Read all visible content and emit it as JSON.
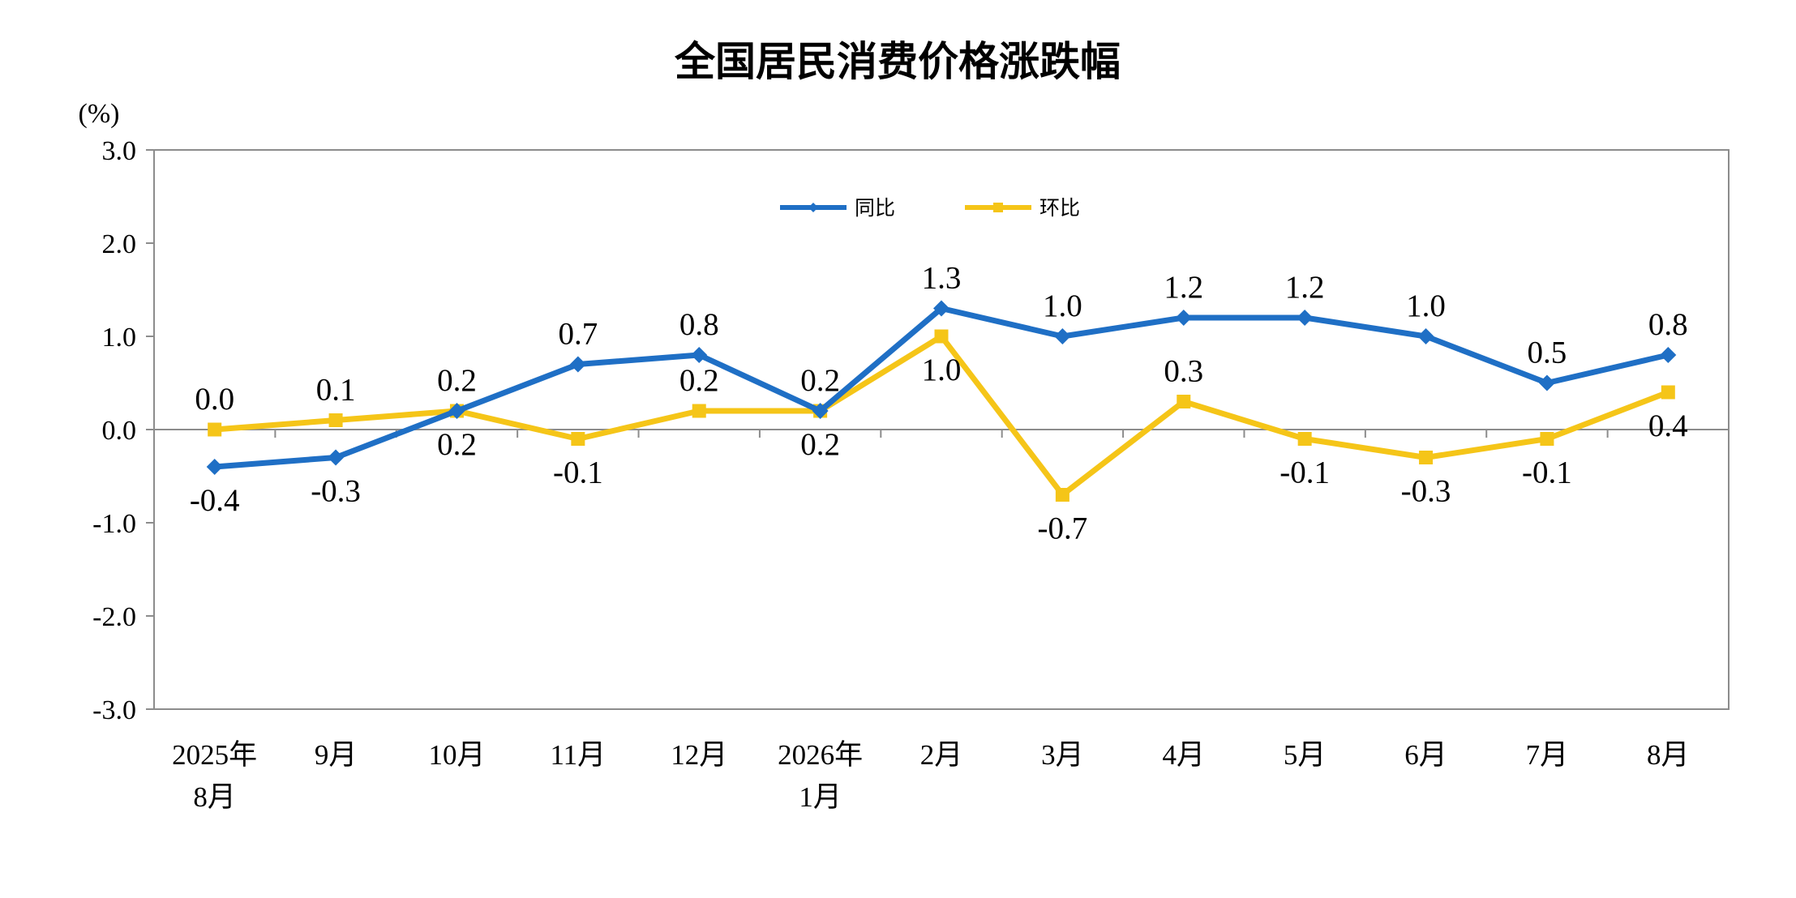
{
  "chart_data": {
    "type": "line",
    "title": "全国居民消费价格涨跌幅",
    "ylabel": "(%)",
    "xlabel": "",
    "categories": [
      [
        "2025年",
        "8月"
      ],
      [
        "9月"
      ],
      [
        "10月"
      ],
      [
        "11月"
      ],
      [
        "12月"
      ],
      [
        "2026年",
        "1月"
      ],
      [
        "2月"
      ],
      [
        "3月"
      ],
      [
        "4月"
      ],
      [
        "5月"
      ],
      [
        "6月"
      ],
      [
        "7月"
      ],
      [
        "8月"
      ]
    ],
    "ylim": [
      -3.0,
      3.0
    ],
    "yticks": [
      "3.0",
      "2.0",
      "1.0",
      "0.0",
      "-1.0",
      "-2.0",
      "-3.0"
    ],
    "yticks_values": [
      3,
      2,
      1,
      0,
      -1,
      -2,
      -3
    ],
    "legend_position": "top-center",
    "grid": false,
    "series": [
      {
        "name": "同比",
        "color": "#1F6FC5",
        "marker": "diamond",
        "values": [
          -0.4,
          -0.3,
          0.2,
          0.7,
          0.8,
          0.2,
          1.3,
          1.0,
          1.2,
          1.2,
          1.0,
          0.5,
          0.8
        ],
        "labels": [
          "-0.4",
          "-0.3",
          "0.2",
          "0.7",
          "0.8",
          "0.2",
          "1.3",
          "1.0",
          "1.2",
          "1.2",
          "1.0",
          "0.5",
          "0.8"
        ],
        "label_side": [
          "below",
          "below",
          "above",
          "above",
          "above",
          "above",
          "above",
          "above",
          "above",
          "above",
          "above",
          "above",
          "above"
        ]
      },
      {
        "name": "环比",
        "color": "#F5C518",
        "marker": "square",
        "values": [
          0.0,
          0.1,
          0.2,
          -0.1,
          0.2,
          0.2,
          1.0,
          -0.7,
          0.3,
          -0.1,
          -0.3,
          -0.1,
          0.4
        ],
        "labels": [
          "0.0",
          "0.1",
          "0.2",
          "-0.1",
          "0.2",
          "0.2",
          "1.0",
          "-0.7",
          "0.3",
          "-0.1",
          "-0.3",
          "-0.1",
          "0.4"
        ],
        "label_side": [
          "above",
          "above",
          "below",
          "below",
          "above",
          "below",
          "below",
          "below",
          "above",
          "below",
          "below",
          "below",
          "below"
        ]
      }
    ]
  }
}
